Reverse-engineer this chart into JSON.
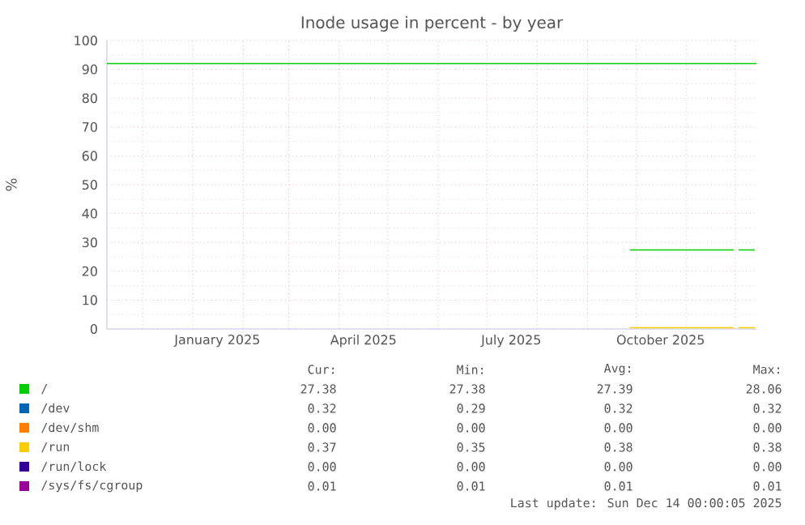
{
  "chart_data": {
    "type": "line",
    "title": "Inode usage in percent - by year",
    "ylabel": "%",
    "x": [
      "2025-09-27",
      "2025-11-30",
      "2025-12-01",
      "2025-12-03",
      "2025-12-13"
    ],
    "xlim": [
      "2024-11-09",
      "2025-12-14"
    ],
    "xticks": [
      {
        "value": "2024-12-01",
        "label": null
      },
      {
        "value": "2025-01-01",
        "label": null
      },
      {
        "value": "2025-01-16",
        "label": "January 2025"
      },
      {
        "value": "2025-02-01",
        "label": null
      },
      {
        "value": "2025-03-01",
        "label": null
      },
      {
        "value": "2025-04-01",
        "label": null
      },
      {
        "value": "2025-04-16",
        "label": "April 2025"
      },
      {
        "value": "2025-05-01",
        "label": null
      },
      {
        "value": "2025-06-01",
        "label": null
      },
      {
        "value": "2025-07-01",
        "label": null
      },
      {
        "value": "2025-07-16",
        "label": "July 2025"
      },
      {
        "value": "2025-08-01",
        "label": null
      },
      {
        "value": "2025-09-01",
        "label": null
      },
      {
        "value": "2025-10-01",
        "label": null
      },
      {
        "value": "2025-10-16",
        "label": "October 2025"
      },
      {
        "value": "2025-11-01",
        "label": null
      },
      {
        "value": "2025-12-01",
        "label": null
      }
    ],
    "ylim": [
      0,
      100
    ],
    "yticks": [
      0,
      10,
      20,
      30,
      40,
      50,
      60,
      70,
      80,
      90,
      100
    ],
    "grid": true,
    "legend": "bottom",
    "line_style": "solid",
    "series": [
      {
        "name": "/",
        "color": "#00cc00",
        "values": [
          27.4,
          27.4,
          null,
          27.4,
          27.4
        ]
      },
      {
        "name": "/dev",
        "color": "#0066b3",
        "values": [
          null,
          null,
          null,
          null,
          null
        ]
      },
      {
        "name": "/dev/shm",
        "color": "#ff8000",
        "values": [
          null,
          null,
          null,
          null,
          null
        ]
      },
      {
        "name": "/run",
        "color": "#ffcc00",
        "values": [
          0.4,
          0.4,
          null,
          0.4,
          0.4
        ]
      },
      {
        "name": "/run/lock",
        "color": "#330099",
        "values": [
          null,
          null,
          null,
          null,
          null
        ]
      },
      {
        "name": "/sys/fs/cgroup",
        "color": "#990099",
        "values": [
          null,
          null,
          null,
          null,
          null
        ]
      }
    ],
    "ref_lines": [
      {
        "axis": "y",
        "value": 92,
        "color": "#00cc00"
      }
    ],
    "annotations": [
      "Cur:",
      "Min:",
      "Avg:",
      "Max:",
      "27.38",
      "27.38",
      "27.39",
      "28.06",
      "0.32",
      "0.29",
      "0.32",
      "0.32",
      "0.00",
      "0.00",
      "0.00",
      "0.00",
      "0.37",
      "0.35",
      "0.38",
      "0.38",
      "0.00",
      "0.00",
      "0.00",
      "0.00",
      "0.01",
      "0.01",
      "0.01",
      "0.01",
      "Last update: Sun Dec 14 00:00:05 2025"
    ]
  }
}
